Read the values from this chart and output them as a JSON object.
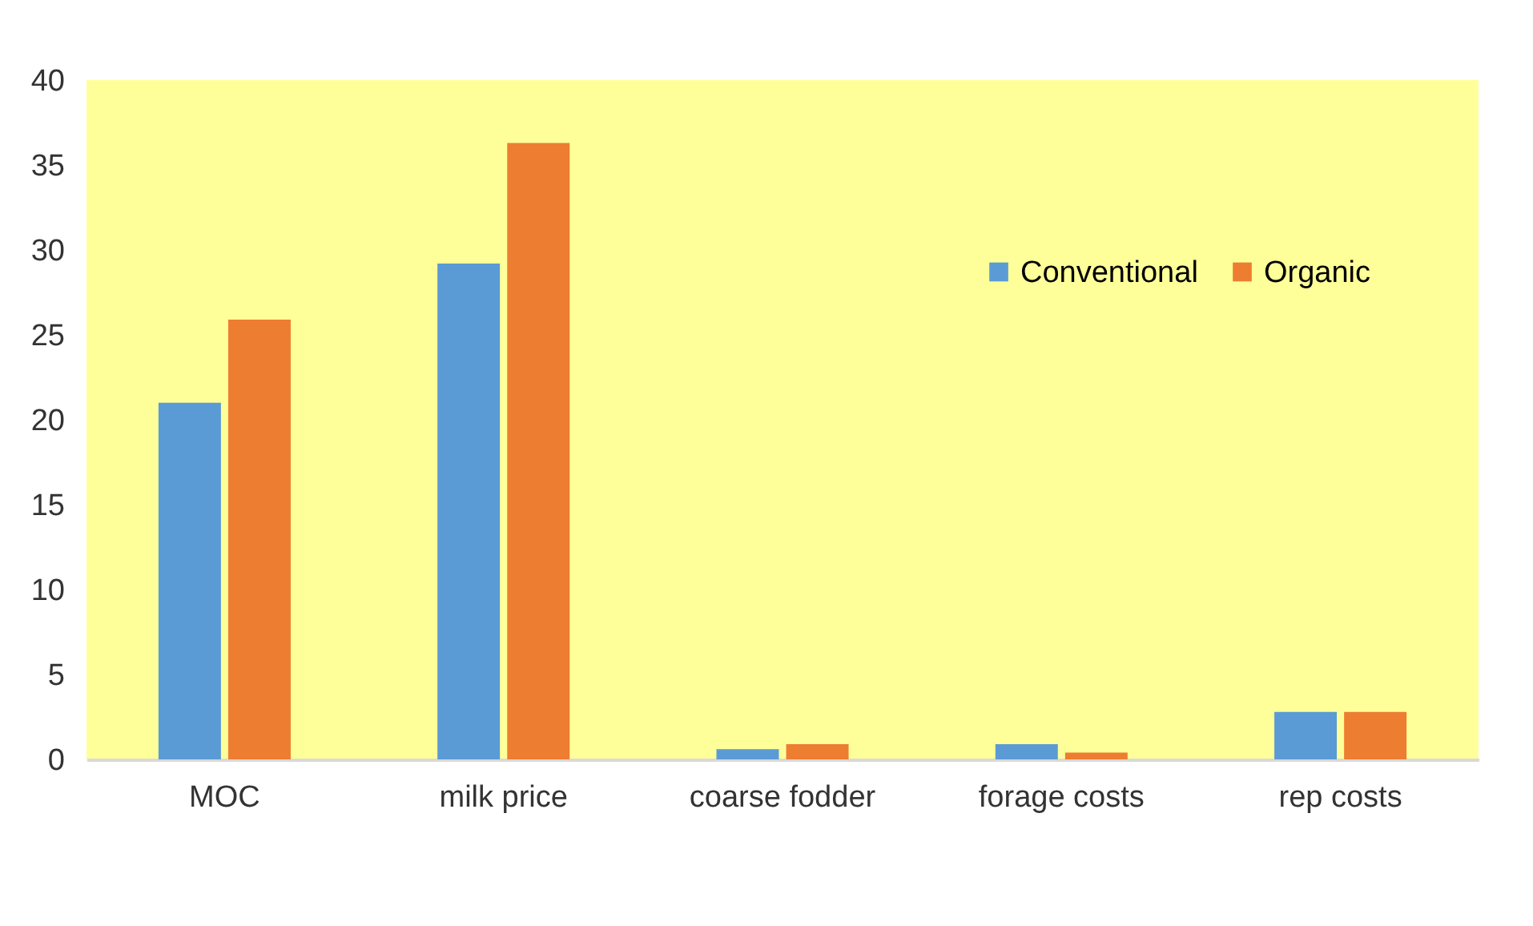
{
  "chart_data": {
    "type": "bar",
    "categories": [
      "MOC",
      "milk price",
      "coarse fodder",
      "forage costs",
      "rep costs"
    ],
    "series": [
      {
        "name": "Conventional",
        "color": "#5b9bd5",
        "values": [
          21.0,
          29.2,
          0.6,
          0.9,
          2.8
        ]
      },
      {
        "name": "Organic",
        "color": "#ed7d31",
        "values": [
          25.9,
          36.3,
          0.9,
          0.4,
          2.8
        ]
      }
    ],
    "ylim": [
      0,
      40
    ],
    "yticks": [
      0,
      5,
      10,
      15,
      20,
      25,
      30,
      35,
      40
    ],
    "grid": false,
    "legend": "top right"
  }
}
